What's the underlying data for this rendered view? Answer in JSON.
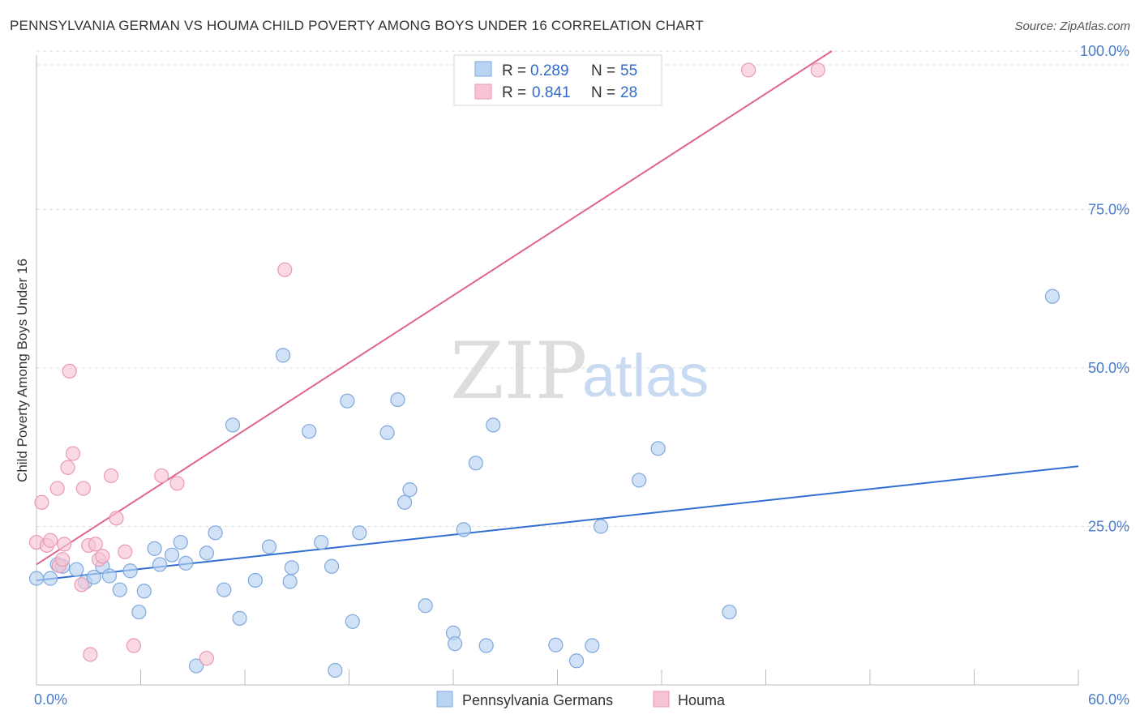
{
  "title": "PENNSYLVANIA GERMAN VS HOUMA CHILD POVERTY AMONG BOYS UNDER 16 CORRELATION CHART",
  "source": "Source: ZipAtlas.com",
  "watermark": {
    "zip": "ZIP",
    "atlas": "atlas"
  },
  "colors": {
    "blue_fill": "#b9d3f3",
    "blue_stroke": "#7fa8dc",
    "blue_line": "#2f6fd0",
    "pink_fill": "#f8c4d4",
    "pink_stroke": "#e99ab3",
    "pink_line": "#e0648d",
    "tick": "#4a7cc9",
    "grid": "#dedede"
  },
  "chart_data": {
    "type": "scatter",
    "ylabel": "Child Poverty Among Boys Under 16",
    "xlim": [
      0,
      60
    ],
    "ylim": [
      0,
      100
    ],
    "x_tick_labels": [
      {
        "value": 0,
        "label": "0.0%"
      },
      {
        "value": 60,
        "label": "60.0%"
      }
    ],
    "y_tick_labels": [
      {
        "value": 25,
        "label": "25.0%"
      },
      {
        "value": 50,
        "label": "50.0%"
      },
      {
        "value": 75,
        "label": "75.0%"
      },
      {
        "value": 100,
        "label": "100.0%"
      }
    ],
    "legend": [
      {
        "r_label": "R =",
        "r": "0.289",
        "n_label": "N =",
        "n": "55"
      },
      {
        "r_label": "R =",
        "r": "0.841",
        "n_label": "N =",
        "n": "28"
      }
    ],
    "series": [
      {
        "name": "Pennsylvania Germans",
        "color": "blue",
        "trend": {
          "x": [
            0,
            60
          ],
          "y": [
            16.5,
            34.5
          ]
        },
        "points": [
          [
            0.0,
            16.8
          ],
          [
            0.8,
            16.8
          ],
          [
            1.2,
            19.0
          ],
          [
            1.5,
            18.7
          ],
          [
            2.3,
            18.2
          ],
          [
            2.8,
            16.2
          ],
          [
            3.3,
            17.0
          ],
          [
            3.8,
            18.7
          ],
          [
            4.2,
            17.2
          ],
          [
            4.8,
            15.0
          ],
          [
            5.4,
            18.0
          ],
          [
            5.9,
            11.5
          ],
          [
            6.2,
            14.8
          ],
          [
            6.8,
            21.5
          ],
          [
            7.1,
            19.0
          ],
          [
            7.8,
            20.5
          ],
          [
            8.3,
            22.5
          ],
          [
            8.6,
            19.2
          ],
          [
            9.2,
            3.0
          ],
          [
            9.8,
            20.8
          ],
          [
            10.3,
            24.0
          ],
          [
            10.8,
            15.0
          ],
          [
            11.3,
            41.0
          ],
          [
            11.7,
            10.5
          ],
          [
            12.6,
            16.5
          ],
          [
            13.4,
            21.8
          ],
          [
            14.2,
            52.0
          ],
          [
            14.6,
            16.3
          ],
          [
            14.7,
            18.5
          ],
          [
            15.7,
            40.0
          ],
          [
            16.4,
            22.5
          ],
          [
            17.0,
            18.7
          ],
          [
            17.2,
            2.3
          ],
          [
            17.9,
            44.8
          ],
          [
            18.2,
            10.0
          ],
          [
            18.6,
            24.0
          ],
          [
            20.2,
            39.8
          ],
          [
            20.8,
            45.0
          ],
          [
            21.2,
            28.8
          ],
          [
            21.5,
            30.8
          ],
          [
            22.4,
            12.5
          ],
          [
            24.0,
            8.2
          ],
          [
            24.1,
            6.5
          ],
          [
            24.6,
            24.5
          ],
          [
            25.3,
            35.0
          ],
          [
            25.9,
            6.2
          ],
          [
            26.3,
            41.0
          ],
          [
            29.9,
            6.3
          ],
          [
            31.1,
            3.8
          ],
          [
            32.0,
            6.2
          ],
          [
            32.5,
            25.0
          ],
          [
            34.7,
            32.3
          ],
          [
            35.8,
            37.3
          ],
          [
            39.9,
            11.5
          ],
          [
            58.5,
            61.3
          ]
        ]
      },
      {
        "name": "Houma",
        "color": "pink",
        "trend": {
          "x": [
            0,
            45.8
          ],
          "y": [
            19.0,
            100.0
          ]
        },
        "points": [
          [
            0.0,
            22.5
          ],
          [
            0.3,
            28.8
          ],
          [
            0.6,
            22.0
          ],
          [
            0.8,
            22.8
          ],
          [
            1.2,
            31.0
          ],
          [
            1.3,
            18.8
          ],
          [
            1.5,
            19.8
          ],
          [
            1.6,
            22.2
          ],
          [
            1.8,
            34.3
          ],
          [
            1.9,
            49.5
          ],
          [
            2.1,
            36.5
          ],
          [
            2.6,
            15.8
          ],
          [
            2.7,
            31.0
          ],
          [
            3.0,
            22.0
          ],
          [
            3.1,
            4.8
          ],
          [
            3.4,
            22.2
          ],
          [
            3.6,
            19.8
          ],
          [
            3.8,
            20.3
          ],
          [
            4.3,
            33.0
          ],
          [
            4.6,
            26.3
          ],
          [
            5.1,
            21.0
          ],
          [
            5.6,
            6.2
          ],
          [
            7.2,
            33.0
          ],
          [
            8.1,
            31.8
          ],
          [
            9.8,
            4.2
          ],
          [
            14.3,
            65.5
          ],
          [
            41.0,
            97.0
          ],
          [
            45.0,
            97.0
          ]
        ]
      }
    ]
  }
}
